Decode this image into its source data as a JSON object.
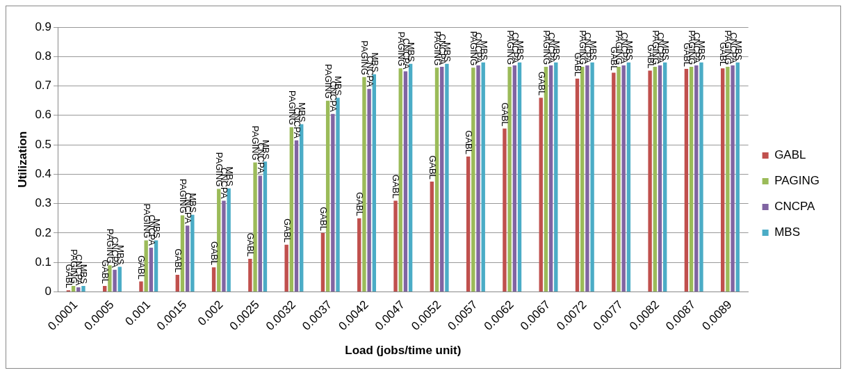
{
  "chart_data": {
    "type": "bar",
    "xlabel": "Load (jobs/time unit)",
    "ylabel": "Utilization",
    "categories": [
      "0.0001",
      "0.0005",
      "0.001",
      "0.0015",
      "0.002",
      "0.0025",
      "0.0032",
      "0.0037",
      "0.0042",
      "0.0047",
      "0.0052",
      "0.0057",
      "0.0062",
      "0.0067",
      "0.0072",
      "0.0077",
      "0.0082",
      "0.0087",
      "0.0089"
    ],
    "series": [
      {
        "name": "GABL",
        "color": "#c0504d",
        "values": [
          0.005,
          0.02,
          0.035,
          0.058,
          0.083,
          0.112,
          0.16,
          0.2,
          0.25,
          0.31,
          0.375,
          0.46,
          0.555,
          0.66,
          0.725,
          0.745,
          0.752,
          0.758,
          0.76
        ]
      },
      {
        "name": "PAGING",
        "color": "#9bbb59",
        "values": [
          0.02,
          0.09,
          0.175,
          0.26,
          0.35,
          0.44,
          0.56,
          0.65,
          0.73,
          0.76,
          0.762,
          0.762,
          0.765,
          0.765,
          0.765,
          0.765,
          0.765,
          0.765,
          0.765
        ]
      },
      {
        "name": "CNCPA",
        "color": "#8064a2",
        "values": [
          0.015,
          0.075,
          0.15,
          0.225,
          0.31,
          0.395,
          0.515,
          0.605,
          0.69,
          0.75,
          0.765,
          0.77,
          0.77,
          0.77,
          0.77,
          0.77,
          0.77,
          0.77,
          0.77
        ]
      },
      {
        "name": "MBS",
        "color": "#4bacc6",
        "values": [
          0.02,
          0.085,
          0.175,
          0.262,
          0.352,
          0.443,
          0.57,
          0.66,
          0.74,
          0.775,
          0.775,
          0.78,
          0.78,
          0.78,
          0.78,
          0.78,
          0.78,
          0.78,
          0.78
        ]
      }
    ],
    "ylim": [
      0,
      0.9
    ],
    "yticks": [
      0,
      0.1,
      0.2,
      0.3,
      0.4,
      0.5,
      0.6,
      0.7,
      0.8,
      0.9
    ],
    "grid": "y",
    "legend": "right"
  }
}
